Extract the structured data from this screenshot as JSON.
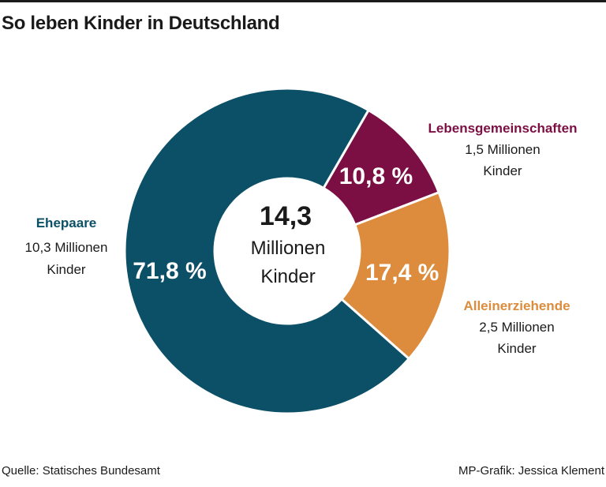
{
  "title": "So leben Kinder in Deutschland",
  "colors": {
    "ehepaare": "#0c5068",
    "lebensgemeinschaften": "#7b0f44",
    "alleinerziehende": "#dc8c3c",
    "text": "#1a1a1a"
  },
  "chart_data": {
    "type": "pie",
    "variant": "donut",
    "title": "So leben Kinder in Deutschland",
    "center": {
      "value": "14,3",
      "line1": "Millionen",
      "line2": "Kinder"
    },
    "slices": [
      {
        "key": "lebensgemeinschaften",
        "name": "Lebensgemeinschaften",
        "value": 10.8,
        "pct_label": "10,8 %",
        "count": "1,5 Millionen",
        "unit": "Kinder"
      },
      {
        "key": "alleinerziehende",
        "name": "Alleinerziehende",
        "value": 17.4,
        "pct_label": "17,4 %",
        "count": "2,5 Millionen",
        "unit": "Kinder"
      },
      {
        "key": "ehepaare",
        "name": "Ehepaare",
        "value": 71.8,
        "pct_label": "71,8 %",
        "count": "10,3 Millionen",
        "unit": "Kinder"
      }
    ]
  },
  "footer": {
    "source": "Quelle: Statisches Bundesamt",
    "credit": "MP-Grafik: Jessica Klement"
  }
}
